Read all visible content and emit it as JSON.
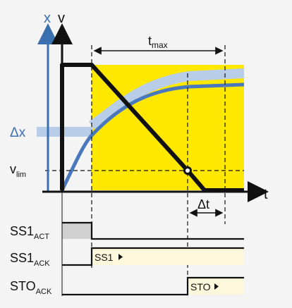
{
  "axes": {
    "x_axis_symbol": "x",
    "v_axis_symbol": "v",
    "t_axis_symbol": "t"
  },
  "annotations": {
    "t_max_main": "t",
    "t_max_sub": "max",
    "delta_x": "Δx",
    "v_lim_main": "v",
    "v_lim_sub": "lim",
    "delta_t": "Δt"
  },
  "signals": [
    {
      "main": "SS1",
      "sub": "ACT",
      "badge": ""
    },
    {
      "main": "SS1",
      "sub": "ACK",
      "badge": "SS1"
    },
    {
      "main": "STO",
      "sub": "ACK",
      "badge": "STO"
    }
  ],
  "colors": {
    "background": "#f4f4f4",
    "highlight": "#ffe800",
    "position_curve": "#4a78bd",
    "position_band": "#b7cde8",
    "axis_x": "#3a6fb0",
    "ack_fill": "#fdf8dc",
    "act_fill": "#d0d0d0"
  }
}
